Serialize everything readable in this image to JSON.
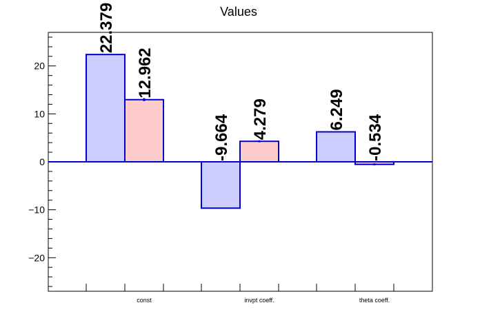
{
  "chart_data": {
    "type": "bar",
    "title": "Values",
    "categories": [
      "const",
      "invpt coeff.",
      "theta coeff."
    ],
    "series": [
      {
        "values": [
          22.379,
          -9.664,
          6.249
        ],
        "errors": [
          0,
          0,
          0
        ],
        "color": "#ccccff",
        "edge": "#0000cc"
      },
      {
        "values": [
          12.962,
          4.279,
          -0.534
        ],
        "errors": [
          0.3,
          0.2,
          0.2
        ],
        "color": "#ffcccc",
        "edge": "#0000cc"
      }
    ],
    "value_labels": [
      [
        "22.379",
        "-9.664",
        "6.249"
      ],
      [
        "12.962",
        "4.279",
        "-0.534"
      ]
    ],
    "ylim": [
      -27,
      27
    ],
    "yticks": [
      -20,
      -10,
      0,
      10,
      20
    ],
    "ytick_labels": [
      "−20",
      "−10",
      "0",
      "10",
      "20"
    ],
    "xlabel": "",
    "ylabel": "",
    "grid": false,
    "legend": "none"
  }
}
